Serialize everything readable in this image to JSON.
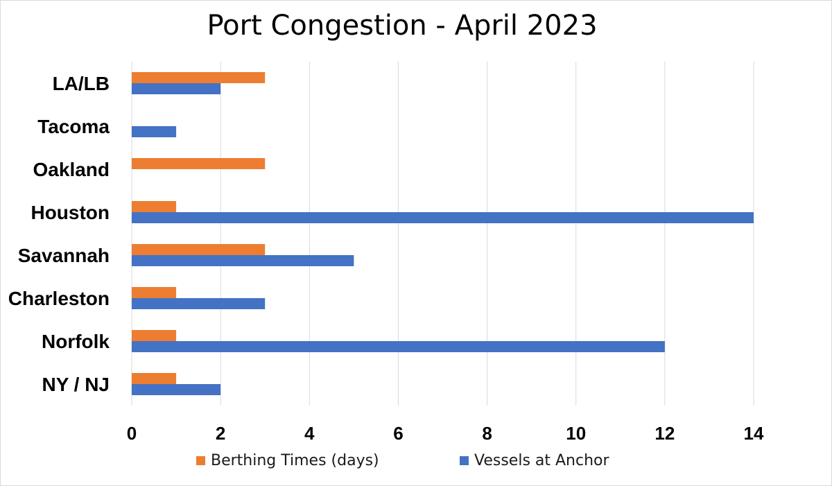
{
  "chart_data": {
    "type": "bar",
    "orientation": "horizontal",
    "title": "Port Congestion - April 2023",
    "categories": [
      "LA/LB",
      "Tacoma",
      "Oakland",
      "Houston",
      "Savannah",
      "Charleston",
      "Norfolk",
      "NY / NJ"
    ],
    "series": [
      {
        "name": "Berthing Times (days)",
        "color": "#ED7D31",
        "values": [
          3,
          0,
          3,
          1,
          3,
          1,
          1,
          1
        ]
      },
      {
        "name": "Vessels at Anchor",
        "color": "#4472C4",
        "values": [
          2,
          1,
          0,
          14,
          5,
          3,
          12,
          2
        ]
      }
    ],
    "x_ticks": [
      "0",
      "2",
      "4",
      "6",
      "8",
      "10",
      "12",
      "14"
    ],
    "xlim": [
      0,
      14
    ],
    "grid": "vertical",
    "legend_position": "bottom"
  }
}
